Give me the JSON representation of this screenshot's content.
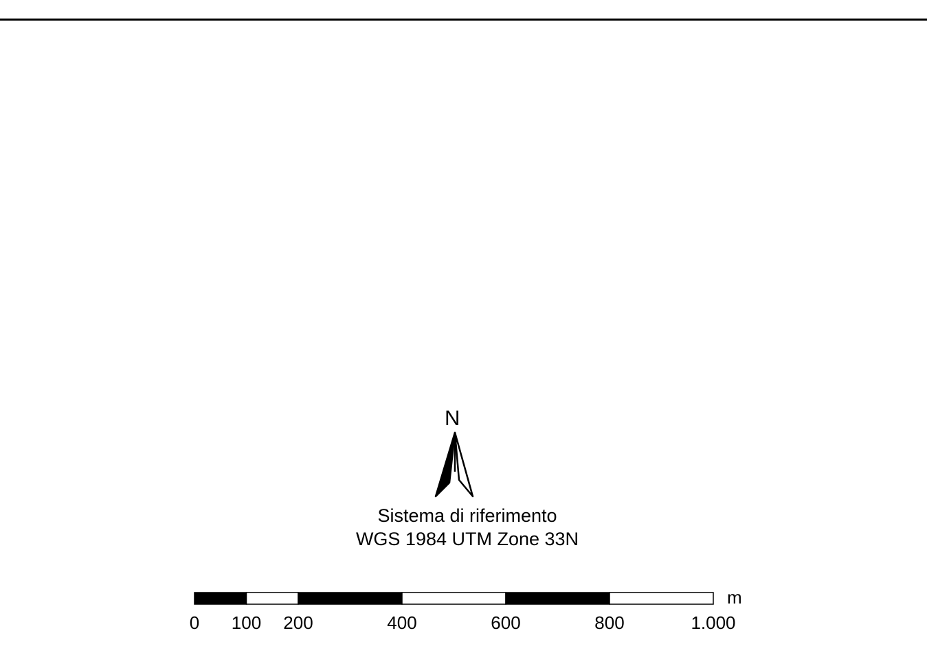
{
  "north_arrow": {
    "letter": "N",
    "icon": "north-arrow-icon"
  },
  "reference_system": {
    "label": "Sistema di riferimento",
    "name": "WGS 1984 UTM Zone 33N"
  },
  "scale_bar": {
    "unit": "m",
    "ticks": [
      {
        "value": 0,
        "label": "0"
      },
      {
        "value": 100,
        "label": "100"
      },
      {
        "value": 200,
        "label": "200"
      },
      {
        "value": 400,
        "label": "400"
      },
      {
        "value": 600,
        "label": "600"
      },
      {
        "value": 800,
        "label": "800"
      },
      {
        "value": 1000,
        "label": "1.000"
      }
    ],
    "max": 1000,
    "colors": {
      "fill": "#000000",
      "empty": "#ffffff"
    }
  }
}
